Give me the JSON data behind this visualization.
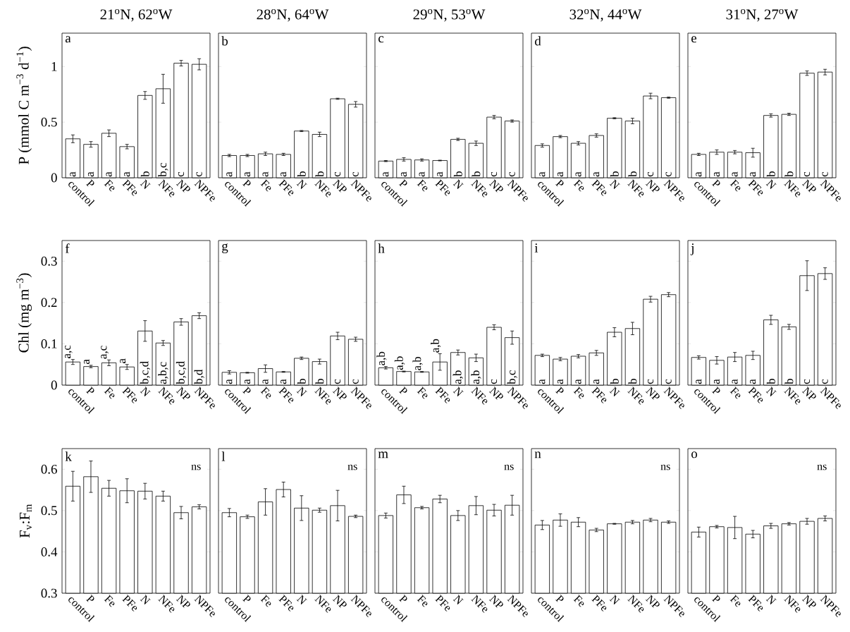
{
  "chart_data": [
    {
      "type": "bar",
      "title": "21$^{o}$N, 62$^{o}$W",
      "ylabel": "P (mmol C m$^{−3}$ d$^{−1}$)",
      "categories": [
        "control",
        "P",
        "Fe",
        "PFe",
        "N",
        "NFe",
        "NP",
        "NPFe"
      ],
      "color": "#ffffff",
      "values": [
        0.35,
        0.3,
        0.4,
        0.28,
        0.74,
        0.8,
        1.03,
        1.02
      ],
      "errors": [
        0.035,
        0.025,
        0.03,
        0.02,
        0.035,
        0.13,
        0.025,
        0.05
      ],
      "ylim": [
        0,
        1.3
      ],
      "yticks": [
        0,
        0.5,
        1
      ],
      "annotations": [
        "a",
        {
          "text": "a",
          "x": "control",
          "y": 0
        },
        {
          "text": "a",
          "x": "P",
          "y": 0
        },
        {
          "text": "a",
          "x": "Fe",
          "y": 0
        },
        {
          "text": "a",
          "x": "PFe",
          "y": 0
        },
        {
          "text": "b",
          "x": "N",
          "y": 0
        },
        {
          "text": "b,c",
          "x": "NFe",
          "y": 0
        },
        {
          "text": "c",
          "x": "NP",
          "y": 0
        },
        {
          "text": "c",
          "x": "NPFe",
          "y": 0
        }
      ]
    },
    {
      "type": "bar",
      "title": "28$^{o}$N, 64$^{o}$W",
      "categories": [
        "control",
        "P",
        "Fe",
        "PFe",
        "N",
        "NFe",
        "NP",
        "NPFe"
      ],
      "color": "#ffffff",
      "values": [
        0.2,
        0.2,
        0.215,
        0.21,
        0.42,
        0.39,
        0.71,
        0.66
      ],
      "errors": [
        0.01,
        0.01,
        0.015,
        0.01,
        0.005,
        0.02,
        0.005,
        0.025
      ],
      "ylim": [
        0,
        1.3
      ],
      "yticks": [
        0,
        0.5,
        1
      ],
      "tick_labels": "x",
      "annotations": [
        "b",
        {
          "text": "a",
          "x": "control",
          "y": 0
        },
        {
          "text": "a",
          "x": "P",
          "y": 0
        },
        {
          "text": "a",
          "x": "Fe",
          "y": 0
        },
        {
          "text": "a",
          "x": "PFe",
          "y": 0
        },
        {
          "text": "b",
          "x": "N",
          "y": 0
        },
        {
          "text": "b",
          "x": "NFe",
          "y": 0
        },
        {
          "text": "c",
          "x": "NP",
          "y": 0
        },
        {
          "text": "c",
          "x": "NPFe",
          "y": 0
        }
      ]
    },
    {
      "type": "bar",
      "title": "29$^{o}$N, 53$^{o}$W",
      "categories": [
        "control",
        "P",
        "Fe",
        "PFe",
        "N",
        "NFe",
        "NP",
        "NPFe"
      ],
      "color": "#ffffff",
      "values": [
        0.15,
        0.165,
        0.16,
        0.155,
        0.345,
        0.31,
        0.545,
        0.51
      ],
      "errors": [
        0.005,
        0.015,
        0.01,
        0.003,
        0.01,
        0.02,
        0.015,
        0.01
      ],
      "ylim": [
        0,
        1.3
      ],
      "yticks": [
        0,
        0.5,
        1
      ],
      "tick_labels": "x",
      "annotations": [
        "c",
        {
          "text": "a",
          "x": "control",
          "y": 0
        },
        {
          "text": "a",
          "x": "P",
          "y": 0
        },
        {
          "text": "a",
          "x": "Fe",
          "y": 0
        },
        {
          "text": "a",
          "x": "PFe",
          "y": 0
        },
        {
          "text": "b",
          "x": "N",
          "y": 0
        },
        {
          "text": "b",
          "x": "NFe",
          "y": 0
        },
        {
          "text": "c",
          "x": "NP",
          "y": 0
        },
        {
          "text": "c",
          "x": "NPFe",
          "y": 0
        }
      ]
    },
    {
      "type": "bar",
      "title": "32$^{o}$N, 44$^{o}$W",
      "categories": [
        "control",
        "P",
        "Fe",
        "PFe",
        "N",
        "NFe",
        "NP",
        "NPFe"
      ],
      "color": "#ffffff",
      "values": [
        0.29,
        0.37,
        0.31,
        0.38,
        0.535,
        0.51,
        0.735,
        0.72
      ],
      "errors": [
        0.015,
        0.01,
        0.015,
        0.015,
        0.005,
        0.025,
        0.025,
        0.005
      ],
      "ylim": [
        0,
        1.3
      ],
      "yticks": [
        0,
        0.5,
        1
      ],
      "tick_labels": "x",
      "annotations": [
        "d",
        {
          "text": "a",
          "x": "control",
          "y": 0
        },
        {
          "text": "a",
          "x": "P",
          "y": 0
        },
        {
          "text": "a",
          "x": "Fe",
          "y": 0
        },
        {
          "text": "a",
          "x": "PFe",
          "y": 0
        },
        {
          "text": "b",
          "x": "N",
          "y": 0
        },
        {
          "text": "b",
          "x": "NFe",
          "y": 0
        },
        {
          "text": "c",
          "x": "NP",
          "y": 0
        },
        {
          "text": "c",
          "x": "NPFe",
          "y": 0
        }
      ]
    },
    {
      "type": "bar",
      "title": "31$^{o}$N, 27$^{o}$W",
      "categories": [
        "control",
        "P",
        "Fe",
        "PFe",
        "N",
        "NFe",
        "NP",
        "NPFe"
      ],
      "color": "#ffffff",
      "values": [
        0.21,
        0.23,
        0.23,
        0.225,
        0.56,
        0.57,
        0.94,
        0.95
      ],
      "errors": [
        0.01,
        0.02,
        0.015,
        0.04,
        0.015,
        0.01,
        0.02,
        0.025
      ],
      "ylim": [
        0,
        1.3
      ],
      "yticks": [
        0,
        0.5,
        1
      ],
      "tick_labels": "x",
      "annotations": [
        "e",
        {
          "text": "a",
          "x": "control",
          "y": 0
        },
        {
          "text": "a",
          "x": "P",
          "y": 0
        },
        {
          "text": "a",
          "x": "Fe",
          "y": 0
        },
        {
          "text": "a",
          "x": "PFe",
          "y": 0
        },
        {
          "text": "b",
          "x": "N",
          "y": 0
        },
        {
          "text": "b",
          "x": "NFe",
          "y": 0
        },
        {
          "text": "c",
          "x": "NP",
          "y": 0
        },
        {
          "text": "c",
          "x": "NPFe",
          "y": 0
        }
      ]
    },
    {
      "type": "bar",
      "ylabel": "Chl (mg m$^{−3}$)",
      "categories": [
        "control",
        "P",
        "Fe",
        "PFe",
        "N",
        "NFe",
        "NP",
        "NPFe"
      ],
      "color": "#ffffff",
      "values": [
        0.056,
        0.045,
        0.054,
        0.044,
        0.131,
        0.102,
        0.153,
        0.168
      ],
      "errors": [
        0.006,
        0.003,
        0.007,
        0.006,
        0.025,
        0.006,
        0.008,
        0.007
      ],
      "ylim": [
        0,
        0.35
      ],
      "yticks": [
        0,
        0.1,
        0.2,
        0.3
      ],
      "annotations": [
        "f",
        {
          "text": "a,c",
          "x": "control",
          "y": 0.056
        },
        {
          "text": "a",
          "x": "P",
          "y": 0.045
        },
        {
          "text": "a,c",
          "x": "Fe",
          "y": 0.054
        },
        {
          "text": "a",
          "x": "PFe",
          "y": 0.044
        },
        {
          "text": "b,c,d",
          "x": "N",
          "y": 0
        },
        {
          "text": "a,b,c",
          "x": "NFe",
          "y": 0
        },
        {
          "text": "b,c,d",
          "x": "NP",
          "y": 0
        },
        {
          "text": "b,d",
          "x": "NPFe",
          "y": 0
        }
      ]
    },
    {
      "type": "bar",
      "categories": [
        "control",
        "P",
        "Fe",
        "PFe",
        "N",
        "NFe",
        "NP",
        "NPFe"
      ],
      "color": "#ffffff",
      "values": [
        0.031,
        0.03,
        0.04,
        0.032,
        0.065,
        0.057,
        0.119,
        0.111
      ],
      "errors": [
        0.004,
        0.001,
        0.009,
        0.001,
        0.003,
        0.006,
        0.009,
        0.005
      ],
      "ylim": [
        0,
        0.35
      ],
      "yticks": [
        0,
        0.1,
        0.2,
        0.3
      ],
      "tick_labels": "x",
      "annotations": [
        "g",
        {
          "text": "a",
          "x": "control",
          "y": 0
        },
        {
          "text": "a",
          "x": "P",
          "y": 0
        },
        {
          "text": "a",
          "x": "Fe",
          "y": 0
        },
        {
          "text": "a",
          "x": "PFe",
          "y": 0
        },
        {
          "text": "b",
          "x": "N",
          "y": 0
        },
        {
          "text": "b",
          "x": "NFe",
          "y": 0
        },
        {
          "text": "c",
          "x": "NP",
          "y": 0
        },
        {
          "text": "c",
          "x": "NPFe",
          "y": 0
        }
      ]
    },
    {
      "type": "bar",
      "categories": [
        "control",
        "P",
        "Fe",
        "PFe",
        "N",
        "NFe",
        "NP",
        "NPFe"
      ],
      "color": "#ffffff",
      "values": [
        0.042,
        0.033,
        0.032,
        0.056,
        0.079,
        0.066,
        0.14,
        0.115
      ],
      "errors": [
        0.003,
        0.001,
        0.001,
        0.02,
        0.006,
        0.009,
        0.006,
        0.016
      ],
      "ylim": [
        0,
        0.35
      ],
      "yticks": [
        0,
        0.1,
        0.2,
        0.3
      ],
      "tick_labels": "x",
      "annotations": [
        "h",
        {
          "text": "a,b",
          "x": "control",
          "y": 0.042
        },
        {
          "text": "a,b",
          "x": "P",
          "y": 0.033
        },
        {
          "text": "a,b",
          "x": "Fe",
          "y": 0.032
        },
        {
          "text": "a,b",
          "x": "PFe",
          "y": 0.056
        },
        {
          "text": "a,b",
          "x": "N",
          "y": 0
        },
        {
          "text": "a,b",
          "x": "NFe",
          "y": 0
        },
        {
          "text": "c",
          "x": "NP",
          "y": 0
        },
        {
          "text": "b,c",
          "x": "NPFe",
          "y": 0
        }
      ]
    },
    {
      "type": "bar",
      "categories": [
        "control",
        "P",
        "Fe",
        "PFe",
        "N",
        "NFe",
        "NP",
        "NPFe"
      ],
      "color": "#ffffff",
      "values": [
        0.072,
        0.063,
        0.07,
        0.078,
        0.128,
        0.137,
        0.208,
        0.219
      ],
      "errors": [
        0.003,
        0.004,
        0.004,
        0.006,
        0.011,
        0.015,
        0.007,
        0.005
      ],
      "ylim": [
        0,
        0.35
      ],
      "yticks": [
        0,
        0.1,
        0.2,
        0.3
      ],
      "tick_labels": "x",
      "annotations": [
        "i",
        {
          "text": "a",
          "x": "control",
          "y": 0
        },
        {
          "text": "a",
          "x": "P",
          "y": 0
        },
        {
          "text": "a",
          "x": "Fe",
          "y": 0
        },
        {
          "text": "a",
          "x": "PFe",
          "y": 0
        },
        {
          "text": "b",
          "x": "N",
          "y": 0
        },
        {
          "text": "b",
          "x": "NFe",
          "y": 0
        },
        {
          "text": "c",
          "x": "NP",
          "y": 0
        },
        {
          "text": "c",
          "x": "NPFe",
          "y": 0
        }
      ]
    },
    {
      "type": "bar",
      "categories": [
        "control",
        "P",
        "Fe",
        "PFe",
        "N",
        "NFe",
        "NP",
        "NPFe"
      ],
      "color": "#ffffff",
      "values": [
        0.067,
        0.06,
        0.068,
        0.072,
        0.158,
        0.141,
        0.265,
        0.27
      ],
      "errors": [
        0.004,
        0.009,
        0.011,
        0.01,
        0.011,
        0.006,
        0.036,
        0.014
      ],
      "ylim": [
        0,
        0.35
      ],
      "yticks": [
        0,
        0.1,
        0.2,
        0.3
      ],
      "tick_labels": "x",
      "annotations": [
        "j",
        {
          "text": "a",
          "x": "control",
          "y": 0
        },
        {
          "text": "a",
          "x": "P",
          "y": 0
        },
        {
          "text": "a",
          "x": "Fe",
          "y": 0
        },
        {
          "text": "a",
          "x": "PFe",
          "y": 0
        },
        {
          "text": "b",
          "x": "N",
          "y": 0
        },
        {
          "text": "b",
          "x": "NFe",
          "y": 0
        },
        {
          "text": "c",
          "x": "NP",
          "y": 0
        },
        {
          "text": "c",
          "x": "NPFe",
          "y": 0
        }
      ]
    },
    {
      "type": "bar",
      "ylabel": "F$_{v}$:F$_{m}$",
      "categories": [
        "control",
        "P",
        "Fe",
        "PFe",
        "N",
        "NFe",
        "NP",
        "NPFe"
      ],
      "color": "#ffffff",
      "values": [
        0.559,
        0.582,
        0.554,
        0.548,
        0.547,
        0.535,
        0.495,
        0.509
      ],
      "errors": [
        0.036,
        0.038,
        0.019,
        0.029,
        0.019,
        0.012,
        0.015,
        0.005
      ],
      "ylim": [
        0.3,
        0.65
      ],
      "yticks": [
        0.3,
        0.4,
        0.5,
        0.6
      ],
      "annotations": [
        "k",
        "ns"
      ]
    },
    {
      "type": "bar",
      "categories": [
        "control",
        "P",
        "Fe",
        "PFe",
        "N",
        "NFe",
        "NP",
        "NPFe"
      ],
      "color": "#ffffff",
      "values": [
        0.495,
        0.485,
        0.521,
        0.551,
        0.506,
        0.501,
        0.512,
        0.486
      ],
      "errors": [
        0.01,
        0.004,
        0.032,
        0.018,
        0.03,
        0.005,
        0.037,
        0.003
      ],
      "ylim": [
        0.3,
        0.65
      ],
      "yticks": [
        0.3,
        0.4,
        0.5,
        0.6
      ],
      "tick_labels": "x",
      "annotations": [
        "l",
        "ns"
      ]
    },
    {
      "type": "bar",
      "categories": [
        "control",
        "P",
        "Fe",
        "PFe",
        "N",
        "NFe",
        "NP",
        "NPFe"
      ],
      "color": "#ffffff",
      "values": [
        0.488,
        0.538,
        0.507,
        0.528,
        0.488,
        0.512,
        0.501,
        0.513
      ],
      "errors": [
        0.006,
        0.021,
        0.003,
        0.009,
        0.012,
        0.022,
        0.014,
        0.024
      ],
      "ylim": [
        0.3,
        0.65
      ],
      "yticks": [
        0.3,
        0.4,
        0.5,
        0.6
      ],
      "tick_labels": "x",
      "annotations": [
        "m",
        "ns"
      ]
    },
    {
      "type": "bar",
      "categories": [
        "control",
        "P",
        "Fe",
        "PFe",
        "N",
        "NFe",
        "NP",
        "NPFe"
      ],
      "color": "#ffffff",
      "values": [
        0.465,
        0.477,
        0.472,
        0.453,
        0.468,
        0.472,
        0.477,
        0.472
      ],
      "errors": [
        0.011,
        0.015,
        0.011,
        0.004,
        0.001,
        0.004,
        0.004,
        0.003
      ],
      "ylim": [
        0.3,
        0.65
      ],
      "yticks": [
        0.3,
        0.4,
        0.5,
        0.6
      ],
      "tick_labels": "x",
      "annotations": [
        "n",
        "ns"
      ]
    },
    {
      "type": "bar",
      "categories": [
        "control",
        "P",
        "Fe",
        "PFe",
        "N",
        "NFe",
        "NP",
        "NPFe"
      ],
      "color": "#ffffff",
      "values": [
        0.448,
        0.461,
        0.459,
        0.443,
        0.463,
        0.468,
        0.474,
        0.481
      ],
      "errors": [
        0.012,
        0.003,
        0.027,
        0.009,
        0.006,
        0.003,
        0.007,
        0.006
      ],
      "ylim": [
        0.3,
        0.65
      ],
      "yticks": [
        0.3,
        0.4,
        0.5,
        0.6
      ],
      "tick_labels": "x",
      "annotations": [
        "o",
        "ns"
      ]
    }
  ]
}
